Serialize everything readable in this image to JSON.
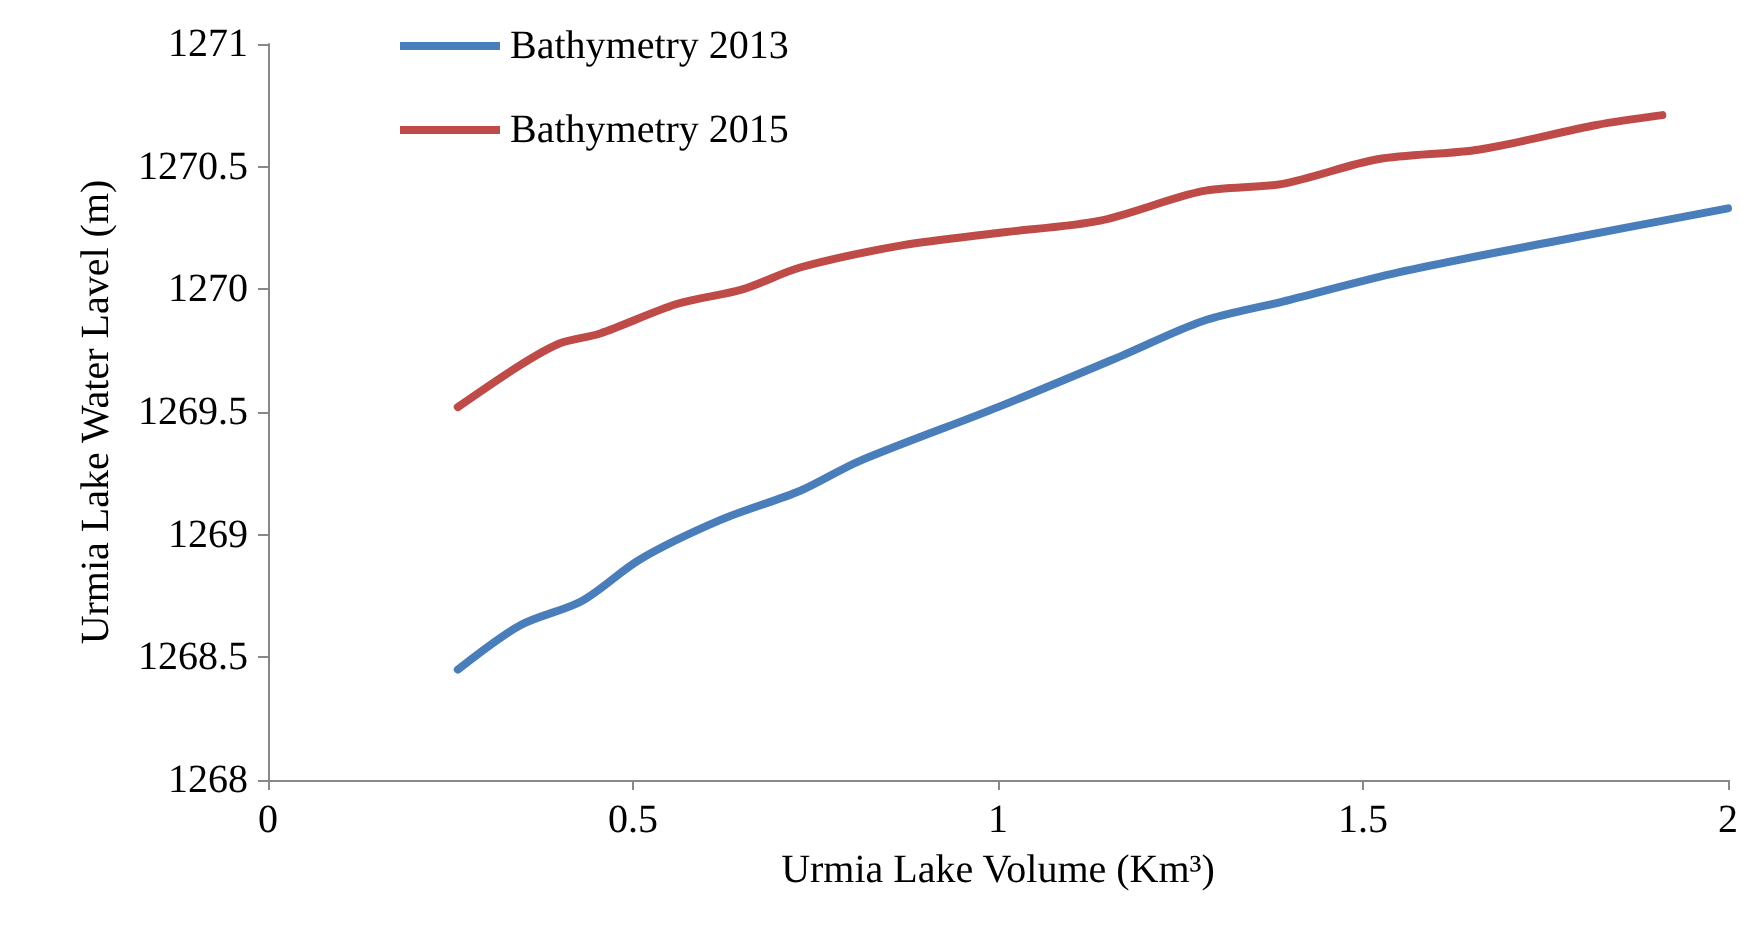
{
  "chart_data": {
    "type": "line",
    "xlabel": "Urmia Lake Volume (Km³)",
    "ylabel": "Urmia Lake Water Lavel (m)",
    "xlim": [
      0,
      2
    ],
    "xticks": [
      0,
      0.5,
      1,
      1.5,
      2
    ],
    "ylim": [
      1268,
      1271
    ],
    "yticks": [
      1268,
      1268.5,
      1269,
      1269.5,
      1270,
      1270.5,
      1271
    ],
    "grid": false,
    "legend": "top left",
    "marker": "none",
    "line_style": "solid",
    "series": [
      {
        "name": "Bathymetry 2013",
        "color": "#4a7ebb",
        "x": [
          0.26,
          0.345,
          0.43,
          0.51,
          0.62,
          0.73,
          0.81,
          1.0,
          1.17,
          1.28,
          1.39,
          1.55,
          1.77,
          2.0
        ],
        "values": [
          1268.45,
          1268.63,
          1268.73,
          1268.9,
          1269.06,
          1269.18,
          1269.3,
          1269.52,
          1269.73,
          1269.87,
          1269.95,
          1270.07,
          1270.2,
          1270.33
        ]
      },
      {
        "name": "Bathymetry 2015",
        "color": "#be4b48",
        "x": [
          0.26,
          0.345,
          0.4,
          0.455,
          0.56,
          0.65,
          0.73,
          0.87,
          1.0,
          1.14,
          1.28,
          1.39,
          1.52,
          1.66,
          1.82,
          1.91
        ],
        "values": [
          1269.52,
          1269.69,
          1269.78,
          1269.82,
          1269.94,
          1270.0,
          1270.09,
          1270.18,
          1270.23,
          1270.28,
          1270.4,
          1270.43,
          1270.53,
          1270.57,
          1270.67,
          1270.71
        ]
      }
    ]
  }
}
